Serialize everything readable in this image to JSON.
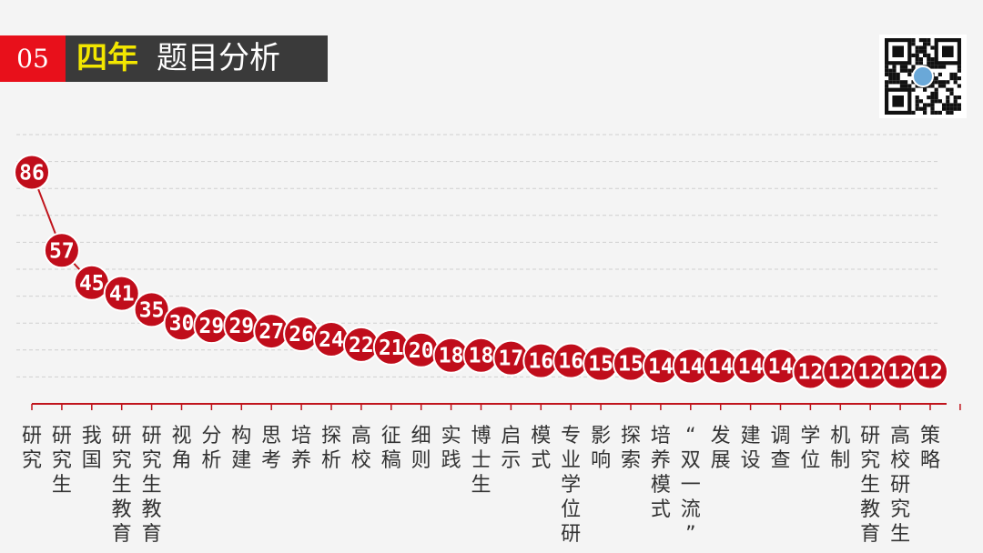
{
  "header": {
    "number": "05",
    "title_highlight": "四年",
    "title_rest": "题目分析"
  },
  "chart_data": {
    "type": "line",
    "categories": [
      "研究",
      "研究生",
      "我国",
      "研究生教育",
      "研究生教育",
      "视角",
      "分析",
      "构建",
      "思考",
      "培养",
      "探析",
      "高校",
      "征稿",
      "细则",
      "实践",
      "博士生",
      "启示",
      "模式",
      "专业学位研",
      "影响",
      "探索",
      "培养模式",
      "“双一流”",
      "发展",
      "建设",
      "调查",
      "学位",
      "机制",
      "研究生教育",
      "高校研究生",
      "策略"
    ],
    "values": [
      86,
      57,
      45,
      41,
      35,
      30,
      29,
      29,
      27,
      26,
      24,
      22,
      21,
      20,
      18,
      18,
      17,
      16,
      16,
      15,
      15,
      14,
      14,
      14,
      14,
      14,
      12,
      12,
      12,
      12,
      12
    ],
    "data_labels": [
      "86",
      "57",
      "45",
      "41",
      "35",
      "30",
      "29",
      "29",
      "27",
      "26",
      "24",
      "22",
      "21",
      "20",
      "18",
      "18",
      "17",
      "16",
      "16",
      "15",
      "15",
      "14",
      "14",
      "14",
      "14",
      "14",
      "12",
      "12",
      "12",
      "12",
      "12"
    ],
    "xlabel": "",
    "ylabel": "",
    "ylim": [
      0,
      100
    ],
    "grid": true,
    "legend": "none",
    "colors": {
      "line": "#c0141c",
      "marker": "#c00d1b",
      "axis": "#c0141c",
      "grid": "#cfcfcf"
    }
  }
}
